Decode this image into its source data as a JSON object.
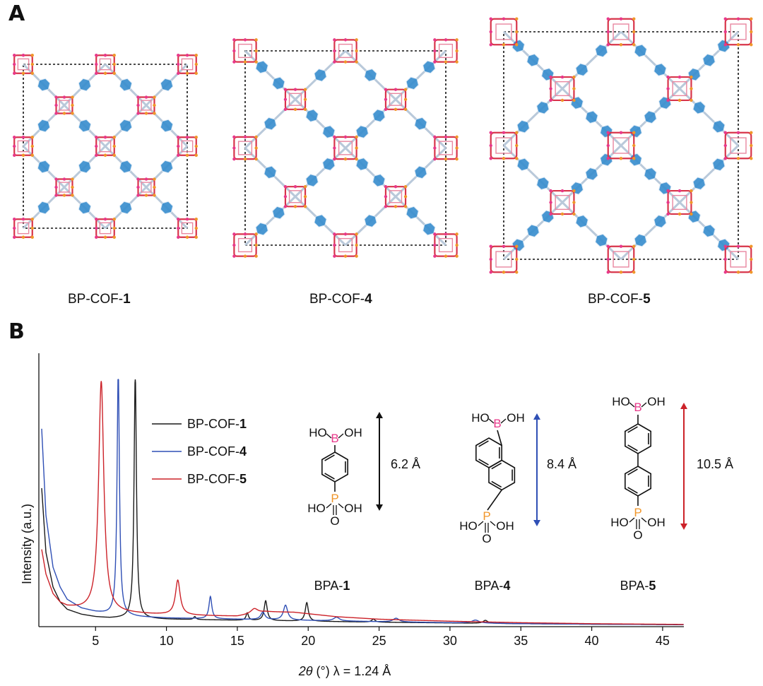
{
  "panel_a": {
    "letter": "A",
    "structures": [
      {
        "prefix": "BP-COF-",
        "number": "1"
      },
      {
        "prefix": "BP-COF-",
        "number": "4"
      },
      {
        "prefix": "BP-COF-",
        "number": "5"
      }
    ]
  },
  "panel_b": {
    "letter": "B"
  },
  "colors": {
    "cof1": "#1a1a1a",
    "cof4": "#2f4fb5",
    "cof5": "#cc2229",
    "boron": "#e8388a",
    "phosphorus": "#f0962a",
    "linker_blue": "#3a8fcf",
    "node_red": "#d8344a"
  },
  "molecules": [
    {
      "prefix": "BPA-",
      "number": "1",
      "length": "6.2 Å",
      "arrow_color": "#111111",
      "phenyl_rings": 1,
      "naphthalene": false
    },
    {
      "prefix": "BPA-",
      "number": "4",
      "length": "8.4 Å",
      "arrow_color": "#2f4fb5",
      "phenyl_rings": 0,
      "naphthalene": true
    },
    {
      "prefix": "BPA-",
      "number": "5",
      "length": "10.5 Å",
      "arrow_color": "#cc2229",
      "phenyl_rings": 2,
      "naphthalene": false
    }
  ],
  "atoms": {
    "B": "B",
    "P": "P",
    "O": "O",
    "OH": "OH",
    "HO": "HO"
  },
  "chart_data": {
    "type": "line",
    "xlabel_italic": "2θ",
    "xlabel_rest": " (°) λ = 1.24 Å",
    "ylabel": "Intensity (a.u.)",
    "xlim": [
      1.0,
      46.5
    ],
    "ylim": [
      0,
      1
    ],
    "x_ticks": [
      5,
      10,
      15,
      20,
      25,
      30,
      35,
      40,
      45
    ],
    "legend_position": "top-center",
    "series": [
      {
        "name": "BP-COF-1",
        "name_prefix": "BP-COF-",
        "name_number": "1",
        "color": "#1a1a1a",
        "baseline": [
          [
            1.2,
            0.56
          ],
          [
            1.5,
            0.3
          ],
          [
            2,
            0.16
          ],
          [
            2.5,
            0.1
          ],
          [
            3,
            0.07
          ],
          [
            4,
            0.05
          ],
          [
            5,
            0.04
          ],
          [
            6,
            0.035
          ],
          [
            7,
            0.035
          ],
          [
            10,
            0.03
          ],
          [
            15,
            0.026
          ],
          [
            20,
            0.022
          ],
          [
            25,
            0.018
          ],
          [
            30,
            0.015
          ],
          [
            35,
            0.012
          ],
          [
            40,
            0.01
          ],
          [
            46.5,
            0.008
          ]
        ],
        "peaks": [
          [
            7.8,
            0.99,
            0.1
          ],
          [
            15.7,
            0.03,
            0.1
          ],
          [
            17.0,
            0.08,
            0.13
          ],
          [
            19.9,
            0.075,
            0.13
          ],
          [
            12.0,
            0.012,
            0.1
          ],
          [
            24.6,
            0.012,
            0.15
          ],
          [
            32.5,
            0.012,
            0.2
          ]
        ]
      },
      {
        "name": "BP-COF-4",
        "name_prefix": "BP-COF-",
        "name_number": "4",
        "color": "#2f4fb5",
        "baseline": [
          [
            1.2,
            0.8
          ],
          [
            1.5,
            0.45
          ],
          [
            2,
            0.24
          ],
          [
            2.5,
            0.16
          ],
          [
            3,
            0.11
          ],
          [
            4,
            0.075
          ],
          [
            5,
            0.06
          ],
          [
            6,
            0.05
          ],
          [
            8,
            0.04
          ],
          [
            10,
            0.035
          ],
          [
            15,
            0.03
          ],
          [
            20,
            0.025
          ],
          [
            25,
            0.02
          ],
          [
            30,
            0.016
          ],
          [
            35,
            0.012
          ],
          [
            40,
            0.01
          ],
          [
            46.5,
            0.008
          ]
        ],
        "peaks": [
          [
            6.6,
            0.99,
            0.1
          ],
          [
            13.1,
            0.09,
            0.12
          ],
          [
            16.8,
            0.03,
            0.18
          ],
          [
            18.4,
            0.06,
            0.18
          ],
          [
            22.0,
            0.015,
            0.25
          ],
          [
            26.2,
            0.015,
            0.25
          ],
          [
            31.8,
            0.012,
            0.3
          ]
        ]
      },
      {
        "name": "BP-COF-5",
        "name_prefix": "BP-COF-",
        "name_number": "5",
        "color": "#cc2229",
        "baseline": [
          [
            1.2,
            0.31
          ],
          [
            1.5,
            0.21
          ],
          [
            2,
            0.13
          ],
          [
            2.5,
            0.095
          ],
          [
            3,
            0.08
          ],
          [
            4,
            0.07
          ],
          [
            5,
            0.065
          ],
          [
            7,
            0.055
          ],
          [
            9,
            0.05
          ],
          [
            12,
            0.045
          ],
          [
            15,
            0.042
          ],
          [
            17,
            0.06
          ],
          [
            19,
            0.058
          ],
          [
            22,
            0.04
          ],
          [
            25,
            0.03
          ],
          [
            30,
            0.022
          ],
          [
            35,
            0.016
          ],
          [
            40,
            0.012
          ],
          [
            46.5,
            0.009
          ]
        ],
        "peaks": [
          [
            5.4,
            0.93,
            0.22
          ],
          [
            10.8,
            0.14,
            0.2
          ],
          [
            16.2,
            0.02,
            0.3
          ]
        ]
      }
    ]
  }
}
